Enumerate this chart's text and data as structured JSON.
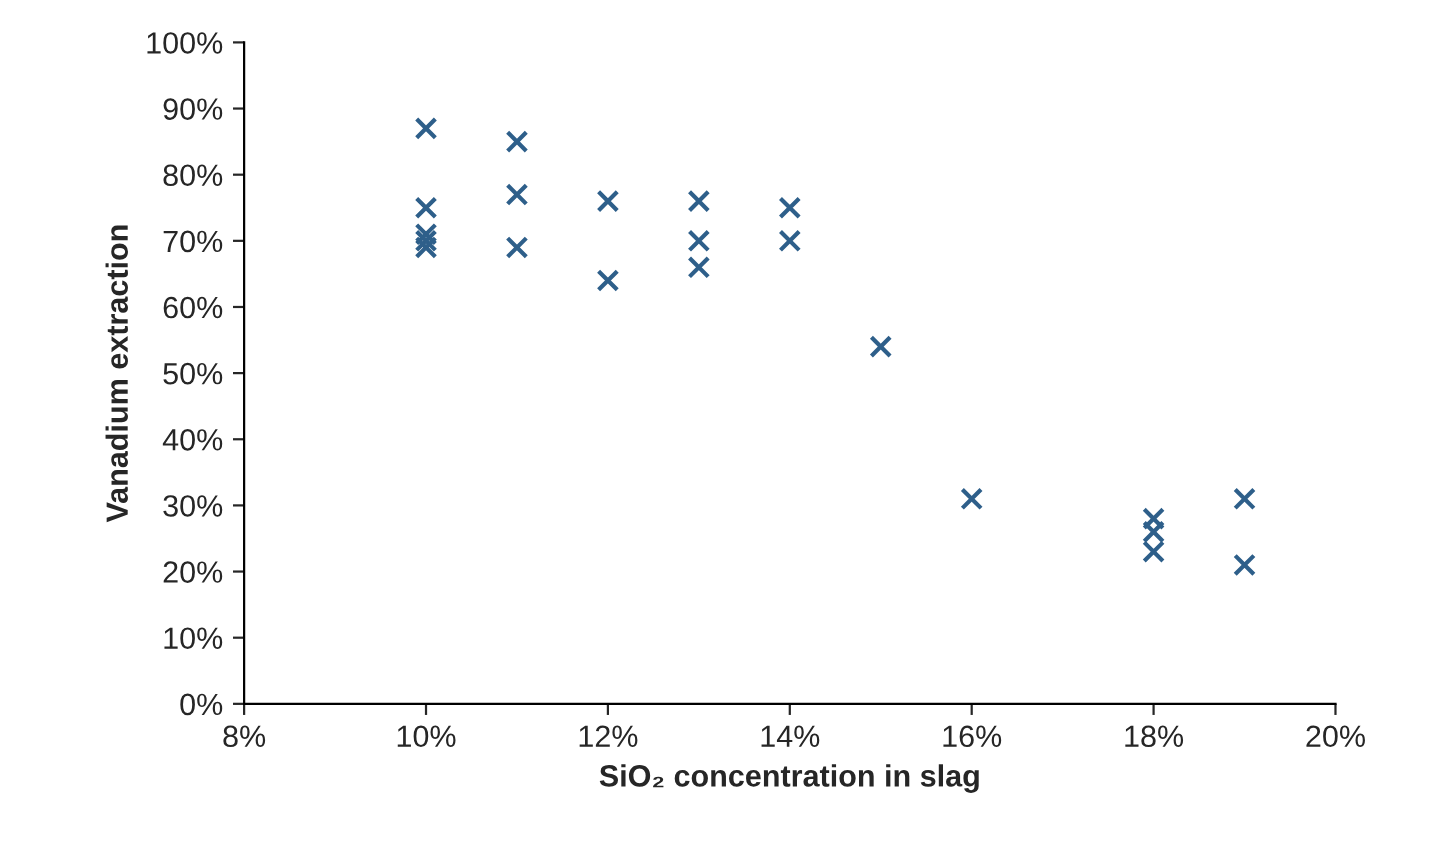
{
  "chart_data": {
    "type": "scatter",
    "xlabel": "SiO₂ concentration in slag",
    "ylabel": "Vanadium extraction",
    "x": [
      0.1,
      0.1,
      0.1,
      0.1,
      0.1,
      0.11,
      0.11,
      0.11,
      0.12,
      0.12,
      0.13,
      0.13,
      0.13,
      0.14,
      0.14,
      0.15,
      0.16,
      0.18,
      0.18,
      0.18,
      0.19,
      0.19
    ],
    "series": [
      {
        "color": "#2e5f8a",
        "values": [
          0.87,
          0.75,
          0.71,
          0.7,
          0.69,
          0.85,
          0.77,
          0.69,
          0.76,
          0.64,
          0.76,
          0.7,
          0.66,
          0.75,
          0.7,
          0.54,
          0.31,
          0.28,
          0.26,
          0.23,
          0.31,
          0.21
        ]
      }
    ],
    "marker": "cross",
    "grid": false,
    "legend": false,
    "xlim": [
      0.08,
      0.2
    ],
    "xticks": [
      {
        "value": 0.08,
        "label": "8%"
      },
      {
        "value": 0.1,
        "label": "10%"
      },
      {
        "value": 0.12,
        "label": "12%"
      },
      {
        "value": 0.14,
        "label": "14%"
      },
      {
        "value": 0.16,
        "label": "16%"
      },
      {
        "value": 0.18,
        "label": "18%"
      },
      {
        "value": 0.2,
        "label": "20%"
      }
    ],
    "ylim": [
      0,
      1
    ],
    "yticks": [
      {
        "value": 0,
        "label": "0%"
      },
      {
        "value": 0.1,
        "label": "10%"
      },
      {
        "value": 0.2,
        "label": "20%"
      },
      {
        "value": 0.3,
        "label": "30%"
      },
      {
        "value": 0.4,
        "label": "40%"
      },
      {
        "value": 0.5,
        "label": "50%"
      },
      {
        "value": 0.6,
        "label": "60%"
      },
      {
        "value": 0.7,
        "label": "70%"
      },
      {
        "value": 0.8,
        "label": "80%"
      },
      {
        "value": 0.9,
        "label": "90%"
      },
      {
        "value": 1.0,
        "label": "100%"
      }
    ]
  }
}
